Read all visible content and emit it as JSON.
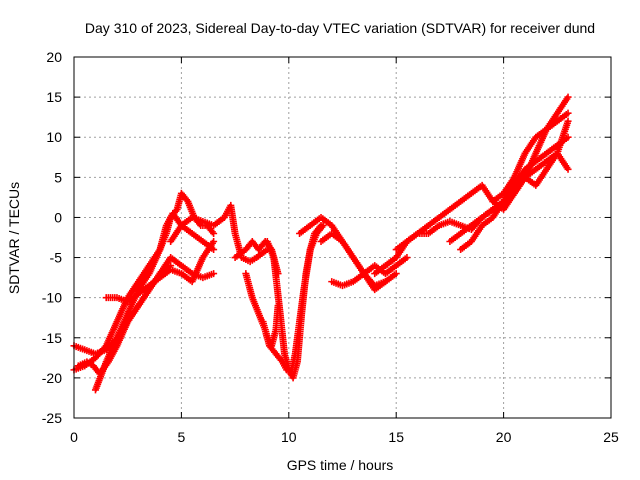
{
  "chart_data": {
    "type": "scatter",
    "title": "Day 310 of 2023, Sidereal Day-to-day VTEC variation (SDTVAR) for receiver dund",
    "xlabel": "GPS time / hours",
    "ylabel": "SDTVAR / TECUs",
    "xlim": [
      0,
      25
    ],
    "ylim": [
      -25,
      20
    ],
    "xticks": [
      "0",
      "5",
      "10",
      "15",
      "20",
      "25"
    ],
    "yticks": [
      "-25",
      "-20",
      "-15",
      "-10",
      "-5",
      "0",
      "5",
      "10",
      "15",
      "20"
    ],
    "grid": true,
    "marker": "plus",
    "color": "#ff0000",
    "series": [
      {
        "x": [
          0.0,
          0.5,
          1.0,
          1.5,
          2.0,
          2.5,
          3.0,
          3.5,
          4.0,
          4.5
        ],
        "y": [
          -16,
          -16.5,
          -17,
          -16.5,
          -15,
          -13,
          -11,
          -9,
          -7,
          -6
        ]
      },
      {
        "x": [
          0.0,
          0.5,
          1.0,
          1.5,
          2.0,
          2.5,
          3.0,
          3.5,
          4.0,
          4.3,
          4.5,
          4.8,
          5.0,
          5.3,
          5.6,
          5.9,
          6.2,
          6.5
        ],
        "y": [
          -19,
          -18.5,
          -17.5,
          -16,
          -13,
          -10,
          -8,
          -6,
          -4,
          -2,
          0,
          1,
          3,
          2,
          0,
          -1,
          -1,
          -2
        ]
      },
      {
        "x": [
          1.0,
          1.5,
          2.0,
          2.5,
          3.0,
          3.5,
          4.0,
          4.3,
          4.6,
          5.0,
          5.5,
          6.0,
          6.5
        ],
        "y": [
          -21.5,
          -18,
          -15,
          -12,
          -9,
          -7,
          -4,
          -1,
          0.5,
          -1,
          -2,
          -3,
          -4
        ]
      },
      {
        "x": [
          0.2,
          0.6,
          0.9,
          1.2,
          1.6,
          2.0,
          2.5,
          3.0,
          3.5,
          4.0,
          4.5,
          5.0,
          5.5,
          6.0,
          6.5
        ],
        "y": [
          -18.5,
          -18,
          -18.5,
          -19.5,
          -18,
          -16,
          -13,
          -11,
          -9,
          -7,
          -5,
          -6,
          -7,
          -7.5,
          -7
        ]
      },
      {
        "x": [
          1.5,
          2.0,
          2.5,
          3.0,
          3.5,
          4.0,
          4.5,
          5.0,
          5.5,
          6.0,
          6.5
        ],
        "y": [
          -10,
          -10,
          -10.5,
          -9.5,
          -8.5,
          -7.5,
          -6.5,
          -7,
          -8,
          -5,
          -3
        ]
      },
      {
        "x": [
          4.5,
          5.0,
          5.5,
          6.0,
          6.5,
          7.0,
          7.3,
          7.5,
          7.8,
          8.2,
          8.5,
          9.0
        ],
        "y": [
          -3,
          -1,
          0,
          -0.5,
          -1,
          0,
          1.5,
          -2,
          -5,
          -5.5,
          -5,
          -4
        ]
      },
      {
        "x": [
          7.5,
          8.0,
          8.3,
          8.6,
          8.9,
          9.2,
          9.5
        ],
        "y": [
          -5,
          -4,
          -3,
          -4,
          -3,
          -4,
          -7
        ]
      },
      {
        "x": [
          8.0,
          8.3,
          8.6,
          8.9,
          9.1,
          9.4,
          9.7,
          9.9,
          10.1,
          10.3,
          10.5,
          10.7,
          11.0,
          11.3,
          11.6
        ],
        "y": [
          -7,
          -10,
          -12,
          -14,
          -16,
          -17,
          -18,
          -19,
          -19.5,
          -17,
          -13,
          -9,
          -4,
          -2,
          -1
        ]
      },
      {
        "x": [
          8.8,
          9.0,
          9.2,
          9.4,
          9.5
        ],
        "y": [
          -13,
          -15,
          -16,
          -14,
          -11
        ]
      },
      {
        "x": [
          9.0,
          9.3,
          9.6,
          9.8,
          10.0,
          10.2,
          10.4,
          10.6,
          10.8,
          11.0,
          11.2,
          11.5
        ],
        "y": [
          -3,
          -5,
          -12,
          -17,
          -19,
          -20,
          -18,
          -12,
          -7,
          -4,
          -2,
          -1
        ]
      },
      {
        "x": [
          10.5,
          11.0,
          11.5,
          12.0,
          12.5,
          13.0,
          13.5,
          14.0,
          14.5
        ],
        "y": [
          -2,
          -1,
          0,
          -1,
          -3,
          -5,
          -7,
          -8.5,
          -8
        ]
      },
      {
        "x": [
          11.5,
          12.0,
          12.5,
          13.0,
          13.5,
          14.0,
          14.5,
          15.0
        ],
        "y": [
          -3,
          -2,
          -3,
          -5,
          -7,
          -9,
          -8,
          -7
        ]
      },
      {
        "x": [
          12.0,
          12.5,
          13.0,
          13.5,
          14.0,
          14.5,
          15.0,
          15.5
        ],
        "y": [
          -8,
          -8.5,
          -8,
          -7,
          -6,
          -7,
          -6,
          -5
        ]
      },
      {
        "x": [
          14.0,
          14.5,
          15.0,
          15.5,
          16.0,
          16.5,
          17.0,
          17.5,
          18.0,
          18.5,
          19.0,
          19.5,
          20.0,
          20.5,
          21.0,
          21.5,
          22.0,
          22.5,
          23.0
        ],
        "y": [
          -7,
          -6,
          -5,
          -3,
          -2,
          -2,
          -1,
          -0.5,
          -1,
          -1.5,
          0,
          1,
          2,
          4,
          6,
          7,
          8,
          9,
          10
        ]
      },
      {
        "x": [
          15.0,
          15.5,
          16.0,
          16.5,
          17.0,
          17.5,
          18.0,
          18.5,
          19.0,
          19.5,
          20.0,
          20.5,
          21.0,
          21.5,
          22.0,
          22.5,
          23.0
        ],
        "y": [
          -4,
          -3,
          -2,
          -1,
          0,
          1,
          2,
          3,
          4,
          2,
          1,
          3,
          5,
          8,
          11,
          13,
          15
        ]
      },
      {
        "x": [
          17.5,
          18.0,
          18.5,
          19.0,
          19.5,
          20.0,
          20.5,
          21.0,
          21.5,
          22.0,
          22.5,
          23.0
        ],
        "y": [
          -3,
          -2,
          -1,
          0,
          1,
          2,
          4,
          5,
          4,
          6,
          8,
          12
        ]
      },
      {
        "x": [
          18.0,
          18.5,
          19.0,
          19.5,
          20.0,
          20.5,
          21.0,
          21.5,
          22.0,
          22.5,
          23.0
        ],
        "y": [
          -4,
          -3,
          -1,
          0,
          2,
          3,
          5,
          6,
          7,
          8,
          6
        ]
      },
      {
        "x": [
          19.5,
          20.0,
          20.5,
          21.0,
          21.5,
          22.0,
          22.5,
          23.0
        ],
        "y": [
          2,
          3,
          5,
          8,
          10,
          11,
          12,
          13
        ]
      }
    ]
  }
}
